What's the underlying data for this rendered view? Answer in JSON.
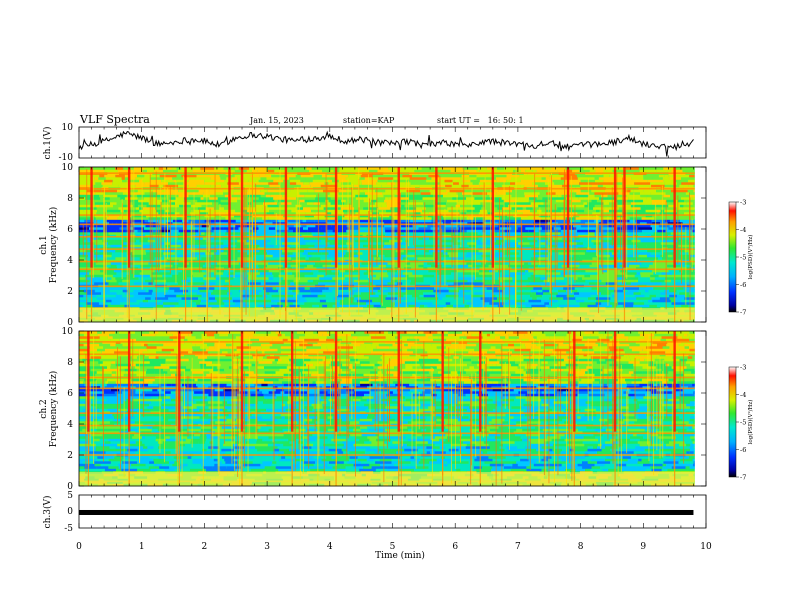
{
  "header": {
    "title": "VLF Spectra",
    "date": "Jan. 15, 2023",
    "station": "station=KAP",
    "start": "start UT =   16: 50: 1"
  },
  "chart_data": [
    {
      "type": "line",
      "ylabel": "ch.1(V)",
      "ylim": [
        -10,
        10
      ],
      "yticks": [
        "10",
        "-10"
      ],
      "x": [
        0,
        0.25,
        0.5,
        0.75,
        1.0,
        1.25,
        1.5,
        1.75,
        2.0,
        2.25,
        2.5,
        2.75,
        3.0,
        3.25,
        3.5,
        3.75,
        4.0,
        4.25,
        4.5,
        4.75,
        5.0,
        5.25,
        5.5,
        5.75,
        6.0,
        6.25,
        6.5,
        6.75,
        7.0,
        7.25,
        7.5,
        7.75,
        8.0,
        8.25,
        8.5,
        8.75,
        9.0,
        9.25,
        9.5,
        9.8
      ],
      "values": [
        -3,
        -1,
        2,
        6,
        3,
        -1,
        0,
        2,
        1,
        -2,
        3,
        5,
        4,
        2,
        1,
        3,
        4,
        1,
        2,
        0,
        -1,
        1,
        -2,
        0,
        -1,
        -2,
        1,
        0,
        -1,
        -2,
        0,
        -3,
        -2,
        -1,
        0,
        3,
        -1,
        -2,
        -3,
        2
      ]
    },
    {
      "type": "heatmap",
      "ylabel": "ch.1\nFrequency (kHz)",
      "ylim": [
        0,
        10
      ],
      "yticks": [
        "0",
        "2",
        "4",
        "6",
        "8",
        "10"
      ],
      "colorbar": {
        "label": "log(PSD)(V²/Hz)",
        "ticks": [
          "-3",
          "-4",
          "-5",
          "-6",
          "-7"
        ],
        "range": [
          -7,
          -3
        ]
      },
      "bands_khz": [
        0.3,
        2.3,
        3.4,
        3.9,
        4.7,
        5.5,
        6.3,
        6.9,
        8.6,
        9.6
      ],
      "bursts_min": [
        0.2,
        0.8,
        1.7,
        2.4,
        2.6,
        3.3,
        4.1,
        5.1,
        5.7,
        6.6,
        7.8,
        8.55,
        8.7,
        9.5
      ]
    },
    {
      "type": "heatmap",
      "ylabel": "ch.2\nFrequency (kHz)",
      "ylim": [
        0,
        10
      ],
      "yticks": [
        "0",
        "2",
        "4",
        "6",
        "8",
        "10"
      ],
      "colorbar": {
        "label": "log(PSD)(V²/Hz)",
        "ticks": [
          "-3",
          "-4",
          "-5",
          "-6",
          "-7"
        ],
        "range": [
          -7,
          -3
        ]
      },
      "bands_khz": [
        0.3,
        2.0,
        3.4,
        3.9,
        4.7,
        6.3,
        7.0,
        8.5,
        9.3
      ],
      "bursts_min": [
        0.15,
        0.8,
        1.6,
        2.6,
        3.4,
        4.1,
        5.1,
        5.8,
        6.4,
        7.9,
        8.55,
        9.5
      ]
    },
    {
      "type": "line",
      "ylabel": "ch.3(V)",
      "ylim": [
        -5,
        5
      ],
      "yticks": [
        "5",
        "0",
        "-5"
      ],
      "x": [
        0,
        9.8
      ],
      "values": [
        -0.3,
        -0.3
      ]
    }
  ],
  "xaxis": {
    "label": "Time (min)",
    "range": [
      0,
      10
    ],
    "ticks": [
      "0",
      "1",
      "2",
      "3",
      "4",
      "5",
      "6",
      "7",
      "8",
      "9",
      "10"
    ]
  }
}
